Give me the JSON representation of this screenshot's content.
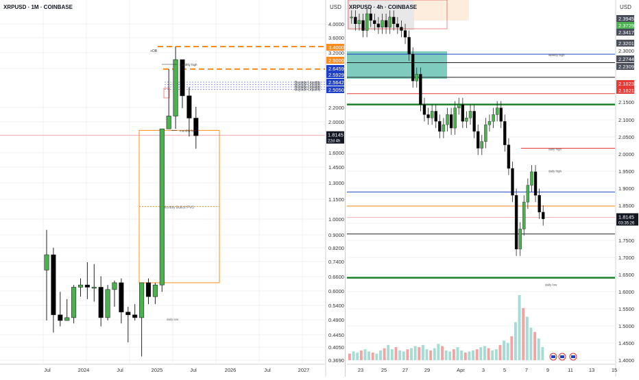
{
  "colors": {
    "up": "#4caf50",
    "down": "#000000",
    "grid": "#eef0f3",
    "axis_text": "#333333",
    "orange": "#ff8c1a",
    "green_line": "#1b7f2a",
    "red_line": "#e53935",
    "blue_line": "#1e40c8",
    "teal": "#5fbfae",
    "badge_dark": "#4a4e5a"
  },
  "left_panel": {
    "title": "XRPUSD · 1M · COINBASE",
    "currency": "USD",
    "price_ticks": [
      "4.0000",
      "3.6000",
      "3.2000",
      "2.8000",
      "2.2000",
      "2.0000",
      "1.8000",
      "1.6000",
      "1.4500",
      "1.3000",
      "1.1500",
      "1.0000",
      "0.9000",
      "0.8200",
      "0.7400",
      "0.6600",
      "0.6000",
      "0.5400",
      "0.4900",
      "0.4450",
      "0.4050",
      "0.3690"
    ],
    "time_ticks": [
      "Jul",
      "2024",
      "Jul",
      "2025",
      "Jul",
      "2026",
      "Jul",
      "2027"
    ],
    "price_badges": [
      {
        "text": "3.4000",
        "color": "#ff8c1a"
      },
      {
        "text": "2.9000",
        "color": "#ff8c1a"
      },
      {
        "text": "2.6459",
        "color": "#1e40c8"
      },
      {
        "text": "2.5929",
        "color": "#1e40c8"
      },
      {
        "text": "2.5642",
        "color": "#1e40c8"
      },
      {
        "text": "2.5050",
        "color": "#1e40c8"
      }
    ],
    "current_price": {
      "value": "1.8145",
      "countdown": "22d 4h"
    },
    "annotations": {
      "ob": "+OB",
      "monthly_high": "monthly high",
      "monthly_low": "monthly low",
      "buyside": [
        "Buyside Liquidity",
        "Buyside Liquidity",
        "Buyside Liquidity",
        "Buyside Liquidity"
      ],
      "fvg": "Monthly Bullish FVG",
      "bottom_note": "daily low"
    }
  },
  "right_panel": {
    "title": "XRPUSD · 4h · COINBASE",
    "currency": "USD",
    "price_ticks": [
      "2.3000",
      "2.2500",
      "2.2000",
      "2.1500",
      "2.1000",
      "2.0500",
      "2.0000",
      "1.9500",
      "1.9000",
      "1.8500",
      "1.8000",
      "1.7500",
      "1.7000",
      "1.6500",
      "1.6000",
      "1.5500",
      "1.5000",
      "1.4500",
      "1.4000"
    ],
    "time_ticks": [
      "23",
      "25",
      "27",
      "29",
      "Apr",
      "3",
      "5",
      "7",
      "9",
      "11",
      "13",
      "15"
    ],
    "price_badges": [
      {
        "text": "2.3945",
        "color": "#4a4e5a"
      },
      {
        "text": "2.3729",
        "color": "#4caf50"
      },
      {
        "text": "2.3417",
        "color": "#4a4e5a"
      },
      {
        "text": "2.3201",
        "color": "#4a4e5a"
      },
      {
        "text": "2.2744",
        "color": "#4a4e5a"
      },
      {
        "text": "2.2309",
        "color": "#4a4e5a"
      },
      {
        "text": "2.1823",
        "color": "#e53935"
      },
      {
        "text": "2.1821",
        "color": "#e53935"
      }
    ],
    "current_price": {
      "value": "1.8145",
      "countdown": "03:35:26"
    },
    "annotations": {
      "weekly_high": "weekly high",
      "daily_high": "daily high",
      "daily_high_2": "daily high",
      "daily_low": "daily low"
    }
  },
  "chart_data": [
    {
      "type": "candlestick",
      "title": "XRPUSD · 1M · COINBASE",
      "x_ticks": [
        "Jul",
        "2024",
        "Jul",
        "2025",
        "Jul",
        "2026",
        "Jul",
        "2027"
      ],
      "ylim": [
        0.369,
        4.0
      ],
      "y_scale": "log",
      "candles": [
        {
          "o": 0.7,
          "h": 0.93,
          "l": 0.49,
          "c": 0.78
        },
        {
          "o": 0.78,
          "h": 0.82,
          "l": 0.45,
          "c": 0.51
        },
        {
          "o": 0.51,
          "h": 0.6,
          "l": 0.47,
          "c": 0.49
        },
        {
          "o": 0.49,
          "h": 0.57,
          "l": 0.49,
          "c": 0.5
        },
        {
          "o": 0.5,
          "h": 0.63,
          "l": 0.48,
          "c": 0.62
        },
        {
          "o": 0.62,
          "h": 0.66,
          "l": 0.58,
          "c": 0.63
        },
        {
          "o": 0.63,
          "h": 0.74,
          "l": 0.57,
          "c": 0.62
        },
        {
          "o": 0.62,
          "h": 0.73,
          "l": 0.56,
          "c": 0.62
        },
        {
          "o": 0.62,
          "h": 0.67,
          "l": 0.47,
          "c": 0.5
        },
        {
          "o": 0.5,
          "h": 0.63,
          "l": 0.49,
          "c": 0.61
        },
        {
          "o": 0.61,
          "h": 0.65,
          "l": 0.54,
          "c": 0.64
        },
        {
          "o": 0.64,
          "h": 0.66,
          "l": 0.48,
          "c": 0.52
        },
        {
          "o": 0.52,
          "h": 0.54,
          "l": 0.42,
          "c": 0.51
        },
        {
          "o": 0.51,
          "h": 0.55,
          "l": 0.49,
          "c": 0.5
        },
        {
          "o": 0.5,
          "h": 0.64,
          "l": 0.38,
          "c": 0.64
        },
        {
          "o": 0.64,
          "h": 0.66,
          "l": 0.55,
          "c": 0.58
        },
        {
          "o": 0.58,
          "h": 0.64,
          "l": 0.55,
          "c": 0.63
        },
        {
          "o": 0.63,
          "h": 1.9,
          "l": 0.6,
          "c": 1.9
        },
        {
          "o": 1.9,
          "h": 2.9,
          "l": 1.9,
          "c": 2.08
        },
        {
          "o": 2.08,
          "h": 3.4,
          "l": 1.9,
          "c": 3.1
        },
        {
          "o": 3.1,
          "h": 3.1,
          "l": 2.2,
          "c": 2.4
        },
        {
          "o": 2.4,
          "h": 2.55,
          "l": 1.8,
          "c": 2.05
        },
        {
          "o": 2.05,
          "h": 2.22,
          "l": 1.65,
          "c": 1.81
        }
      ],
      "levels": [
        {
          "value": 3.4,
          "color": "#ff8c1a"
        },
        {
          "value": 2.9,
          "color": "#ff8c1a"
        }
      ],
      "fvg_zone": [
        0.64,
        1.88
      ]
    },
    {
      "type": "candlestick",
      "title": "XRPUSD · 4h · COINBASE",
      "x_ticks": [
        "23",
        "25",
        "27",
        "29",
        "Apr",
        "3",
        "5",
        "7",
        "9",
        "11",
        "13",
        "15"
      ],
      "ylim": [
        1.39,
        2.42
      ],
      "series": [
        {
          "name": "close",
          "values": [
            2.41,
            2.39,
            2.4,
            2.37,
            2.42,
            2.4,
            2.39,
            2.38,
            2.4,
            2.38,
            2.41,
            2.39,
            2.38,
            2.37,
            2.35,
            2.3,
            2.22,
            2.24,
            2.15,
            2.12,
            2.11,
            2.13,
            2.1,
            2.07,
            2.09,
            2.12,
            2.08,
            2.14,
            2.15,
            2.1,
            2.11,
            2.13,
            2.07,
            2.02,
            2.04,
            2.09,
            2.1,
            2.12,
            2.14,
            2.1,
            2.03,
            1.96,
            1.88,
            1.72,
            1.78,
            1.86,
            1.91,
            1.95,
            1.88,
            1.83,
            1.81
          ]
        }
      ],
      "levels": [
        {
          "value": 2.2996,
          "color": "#1e40c8"
        },
        {
          "value": 2.2744,
          "color": "#222222"
        },
        {
          "value": 2.2309,
          "color": "#222222"
        },
        {
          "value": 2.1823,
          "color": "#e53935"
        },
        {
          "value": 2.15,
          "color": "#1b7f2a"
        },
        {
          "value": 2.02,
          "color": "#e53935"
        },
        {
          "value": 1.89,
          "color": "#1e40c8"
        },
        {
          "value": 1.848,
          "color": "#ff8c1a"
        },
        {
          "value": 1.765,
          "color": "#222222"
        },
        {
          "value": 1.635,
          "color": "#1b7f2a"
        }
      ],
      "volume": [
        6,
        8,
        7,
        9,
        10,
        8,
        7,
        6,
        9,
        11,
        14,
        10,
        12,
        9,
        8,
        10,
        11,
        13,
        12,
        14,
        10,
        9,
        11,
        15,
        13,
        9,
        8,
        10,
        12,
        9,
        7,
        8,
        9,
        10,
        12,
        13,
        11,
        9,
        10,
        14,
        18,
        16,
        22,
        35,
        60,
        48,
        40,
        30,
        26,
        20,
        12
      ]
    }
  ]
}
